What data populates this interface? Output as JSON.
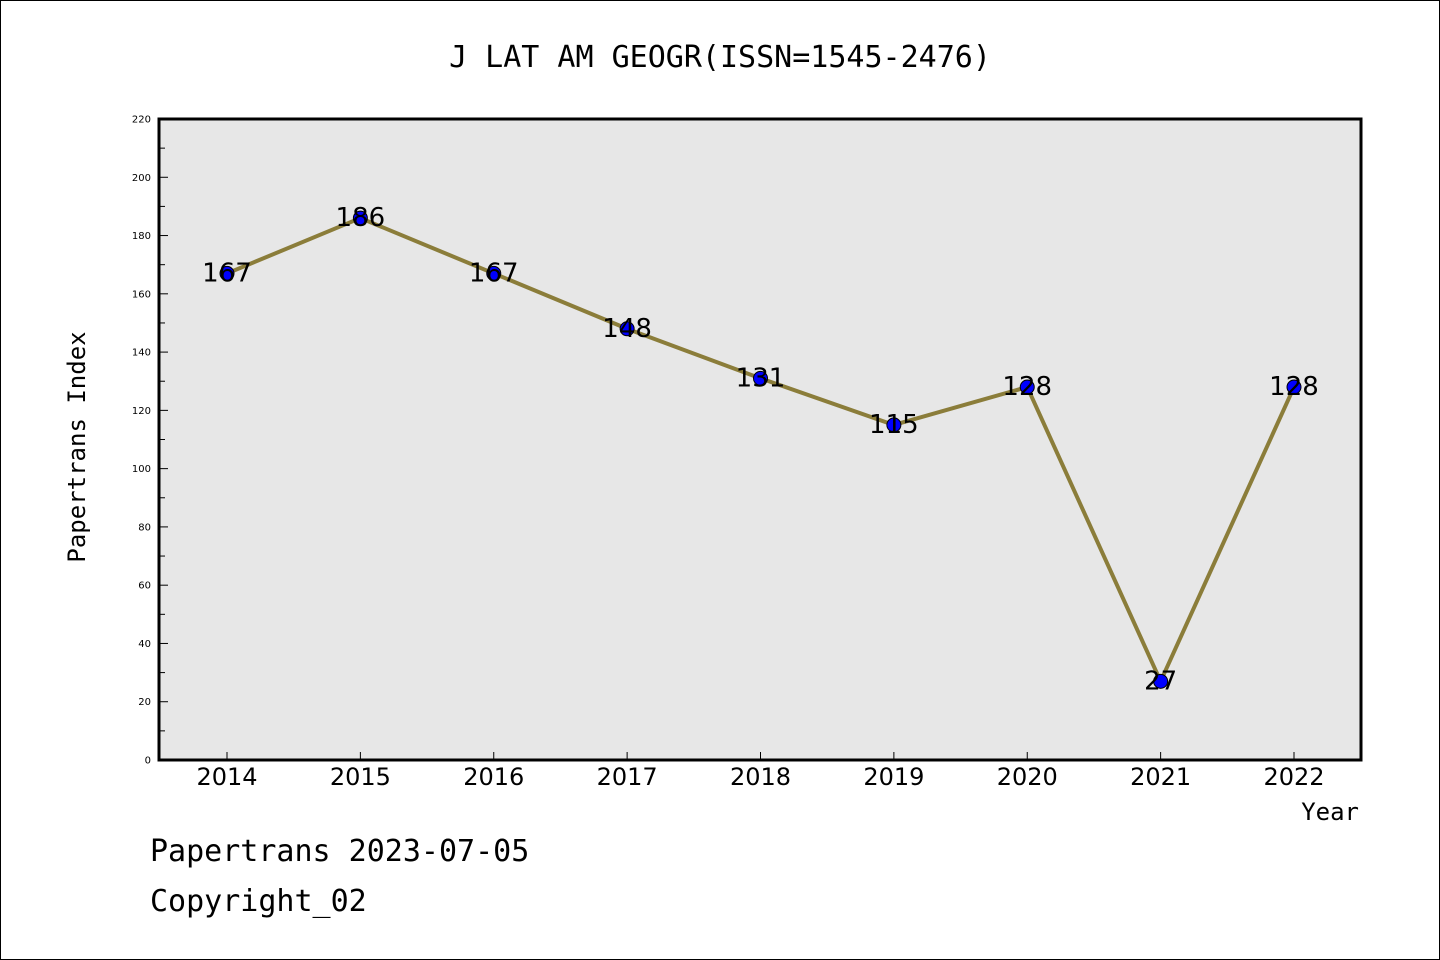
{
  "chart_data": {
    "type": "line",
    "title": "J LAT AM GEOGR(ISSN=1545-2476)",
    "xlabel": "Year",
    "ylabel": "Papertrans Index",
    "categories": [
      "2014",
      "2015",
      "2016",
      "2017",
      "2018",
      "2019",
      "2020",
      "2021",
      "2022"
    ],
    "values": [
      167,
      186,
      167,
      148,
      131,
      115,
      128,
      27,
      128
    ],
    "ylim": [
      0,
      220
    ],
    "yticks": [
      0,
      20,
      40,
      60,
      80,
      100,
      120,
      140,
      160,
      180,
      200,
      220
    ],
    "grid": false,
    "legend": "none",
    "line_color": "#8b7d3a",
    "marker_color": "#0000ff",
    "plot_background": "#e7e7e7"
  },
  "footer": {
    "date_text": "Papertrans 2023-07-05",
    "copyright_text": "Copyright_02"
  }
}
